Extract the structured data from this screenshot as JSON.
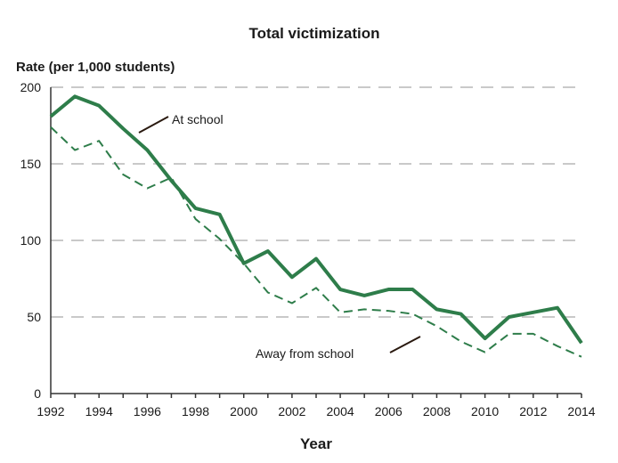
{
  "chart_data": {
    "type": "line",
    "title": "Total victimization",
    "ylabel": "Rate (per 1,000 students)",
    "xlabel": "Year",
    "xlim": [
      1992,
      2014
    ],
    "ylim": [
      0,
      200
    ],
    "x_ticks": [
      1992,
      1994,
      1996,
      1998,
      2000,
      2002,
      2004,
      2006,
      2008,
      2010,
      2012,
      2014
    ],
    "x_tick_labels": [
      "1992",
      "1994",
      "1996",
      "1998",
      "2000",
      "2002",
      "2004",
      "2006",
      "2008",
      "2010",
      "2012",
      "2014"
    ],
    "y_ticks": [
      0,
      50,
      100,
      150,
      200
    ],
    "y_tick_labels": [
      "0",
      "50",
      "100",
      "150",
      "200"
    ],
    "grid": true,
    "x": [
      1992,
      1993,
      1994,
      1995,
      1996,
      1997,
      1998,
      1999,
      2000,
      2001,
      2002,
      2003,
      2004,
      2005,
      2006,
      2007,
      2008,
      2009,
      2010,
      2011,
      2012,
      2013,
      2014
    ],
    "series": [
      {
        "name": "At school",
        "style": "solid",
        "color": "#2e7d4a",
        "values": [
          181,
          194,
          188,
          173,
          159,
          139,
          121,
          117,
          85,
          93,
          76,
          88,
          68,
          64,
          68,
          68,
          55,
          52,
          36,
          50,
          53,
          56,
          33
        ]
      },
      {
        "name": "Away from school",
        "style": "dashed",
        "color": "#2e7d4a",
        "values": [
          174,
          159,
          165,
          143,
          134,
          141,
          114,
          101,
          85,
          66,
          59,
          69,
          53,
          55,
          54,
          52,
          44,
          34,
          27,
          39,
          39,
          31,
          24
        ]
      }
    ],
    "annotations": [
      {
        "text": "At school",
        "series": "At school"
      },
      {
        "text": "Away from school",
        "series": "Away from school"
      }
    ]
  }
}
